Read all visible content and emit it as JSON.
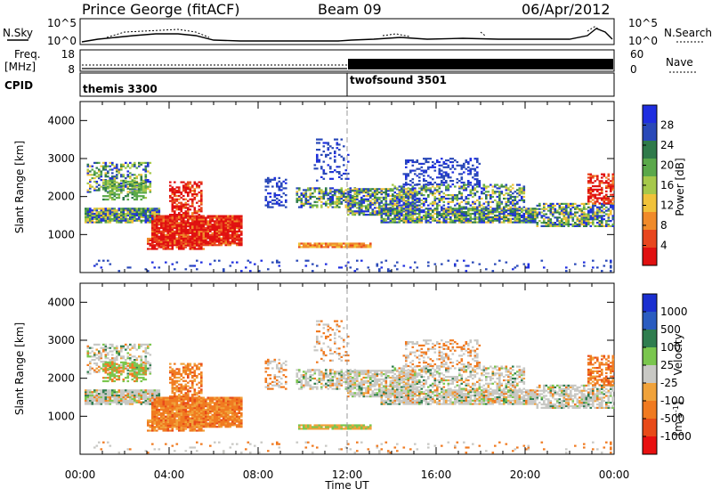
{
  "header": {
    "station": "Prince George (fitACF)",
    "beam": "Beam 09",
    "date": "06/Apr/2012"
  },
  "noise_panel": {
    "left_label": "N.Sky",
    "right_label": "N.Search",
    "left_ticks": [
      "10^5",
      "10^0"
    ],
    "right_ticks": [
      "10^5",
      "10^0"
    ]
  },
  "freq_panel": {
    "left_label_top": "Freq.",
    "left_label_unit": "[MHz]",
    "right_label": "Nave",
    "left_ticks": [
      "18",
      "8"
    ],
    "right_ticks": [
      "60",
      "0"
    ]
  },
  "cpid_panel": {
    "label": "CPID",
    "programs": [
      {
        "name": "themis 3300",
        "start_hour": 0
      },
      {
        "name": "twofsound 3501",
        "start_hour": 12
      }
    ]
  },
  "colors": {
    "power_scale": [
      "#1f2ee0",
      "#2a49b8",
      "#2f7a4a",
      "#5aa84a",
      "#a6c84a",
      "#f0c23a",
      "#f08a2a",
      "#e8461e",
      "#e01010"
    ],
    "velocity_scale": [
      "#1a2fd0",
      "#2a5cc0",
      "#2f7d4f",
      "#7ac64e",
      "#c8c8c4",
      "#f0a23a",
      "#f07a20",
      "#e84a18",
      "#e81010"
    ]
  },
  "chart_data": [
    {
      "type": "heatmap",
      "title": "",
      "xlabel": "Time UT",
      "ylabel": "Slant Range [km]",
      "xlim": [
        0,
        24
      ],
      "ylim": [
        0,
        4500
      ],
      "x_tick_labels": [
        "00:00",
        "04:00",
        "08:00",
        "12:00",
        "16:00",
        "20:00",
        "00:00"
      ],
      "y_ticks": [
        1000,
        2000,
        3000,
        4000
      ],
      "colorbar": {
        "label": "Power [dB]",
        "ticks": [
          "28",
          "24",
          "20",
          "16",
          "12",
          "8",
          "4"
        ],
        "range": [
          0,
          30
        ]
      }
    },
    {
      "type": "heatmap",
      "title": "",
      "xlabel": "Time UT",
      "ylabel": "Slant Range [km]",
      "xlim": [
        0,
        24
      ],
      "ylim": [
        0,
        4500
      ],
      "x_tick_labels": [
        "00:00",
        "04:00",
        "08:00",
        "12:00",
        "16:00",
        "20:00",
        "00:00"
      ],
      "y_ticks": [
        1000,
        2000,
        3000,
        4000
      ],
      "colorbar": {
        "label": "Velocity",
        "unit_main": "[m s",
        "unit_sup": "-1",
        "unit_end": "]",
        "ticks": [
          "1000",
          "500",
          "100",
          "25",
          "-25",
          "-100",
          "-500",
          "-1000"
        ],
        "range": [
          -1000,
          1000
        ]
      }
    }
  ]
}
